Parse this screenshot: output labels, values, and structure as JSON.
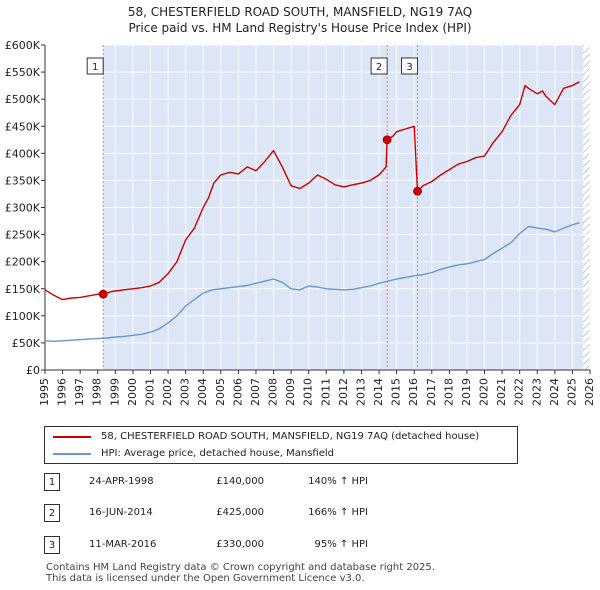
{
  "title_line1": "58, CHESTERFIELD ROAD SOUTH, MANSFIELD, NG19 7AQ",
  "title_line2": "Price paid vs. HM Land Registry's House Price Index (HPI)",
  "colors": {
    "price_line": "#cc0000",
    "hpi_line": "#6699cc",
    "shade": "#dde6f7",
    "grid": "#ffffff",
    "hatch": "#999999",
    "marker_line": "#ee7777"
  },
  "chart_data": {
    "type": "line",
    "title": "58, CHESTERFIELD ROAD SOUTH, MANSFIELD, NG19 7AQ — Price paid vs. HM Land Registry's House Price Index (HPI)",
    "xlabel": "",
    "ylabel": "",
    "xlim": [
      1995,
      2026
    ],
    "ylim": [
      0,
      600000
    ],
    "x_ticks": [
      "1995",
      "1996",
      "1997",
      "1998",
      "1999",
      "2000",
      "2001",
      "2002",
      "2003",
      "2004",
      "2005",
      "2006",
      "2007",
      "2008",
      "2009",
      "2010",
      "2011",
      "2012",
      "2013",
      "2014",
      "2015",
      "2016",
      "2017",
      "2018",
      "2019",
      "2020",
      "2021",
      "2022",
      "2023",
      "2024",
      "2025",
      "2026"
    ],
    "y_ticks": [
      {
        "value": 0,
        "label": "£0"
      },
      {
        "value": 50000,
        "label": "£50K"
      },
      {
        "value": 100000,
        "label": "£100K"
      },
      {
        "value": 150000,
        "label": "£150K"
      },
      {
        "value": 200000,
        "label": "£200K"
      },
      {
        "value": 250000,
        "label": "£250K"
      },
      {
        "value": 300000,
        "label": "£300K"
      },
      {
        "value": 350000,
        "label": "£350K"
      },
      {
        "value": 400000,
        "label": "£400K"
      },
      {
        "value": 450000,
        "label": "£450K"
      },
      {
        "value": 500000,
        "label": "£500K"
      },
      {
        "value": 550000,
        "label": "£550K"
      },
      {
        "value": 600000,
        "label": "£600K"
      }
    ],
    "shaded_period": [
      1998.31,
      2025.6
    ],
    "hatched_after": 2025.6,
    "grid": true,
    "series": [
      {
        "name": "58, CHESTERFIELD ROAD SOUTH, MANSFIELD, NG19 7AQ (detached house)",
        "x": [
          1995.0,
          1995.5,
          1996.0,
          1996.5,
          1997.0,
          1997.5,
          1998.0,
          1998.31,
          1998.8,
          1999.5,
          2000.0,
          2000.5,
          2001.0,
          2001.5,
          2002.0,
          2002.5,
          2003.0,
          2003.5,
          2004.0,
          2004.3,
          2004.6,
          2005.0,
          2005.5,
          2006.0,
          2006.5,
          2007.0,
          2007.5,
          2008.0,
          2008.5,
          2009.0,
          2009.5,
          2010.0,
          2010.5,
          2011.0,
          2011.5,
          2012.0,
          2012.5,
          2013.0,
          2013.5,
          2014.0,
          2014.4,
          2014.46,
          2014.8,
          2015.0,
          2015.5,
          2016.0,
          2016.19,
          2016.5,
          2017.0,
          2017.5,
          2018.0,
          2018.5,
          2019.0,
          2019.5,
          2020.0,
          2020.5,
          2021.0,
          2021.5,
          2022.0,
          2022.3,
          2022.5,
          2023.0,
          2023.3,
          2023.5,
          2024.0,
          2024.5,
          2025.0,
          2025.4
        ],
        "values": [
          148000,
          138000,
          130000,
          133000,
          134000,
          137000,
          140000,
          140000,
          145000,
          148000,
          150000,
          152000,
          155000,
          162000,
          178000,
          200000,
          240000,
          262000,
          300000,
          318000,
          345000,
          360000,
          365000,
          362000,
          375000,
          368000,
          385000,
          405000,
          375000,
          340000,
          335000,
          345000,
          360000,
          352000,
          342000,
          338000,
          342000,
          345000,
          350000,
          360000,
          375000,
          425000,
          432000,
          440000,
          445000,
          450000,
          330000,
          340000,
          348000,
          360000,
          370000,
          380000,
          385000,
          392000,
          395000,
          420000,
          440000,
          470000,
          490000,
          525000,
          520000,
          510000,
          515000,
          505000,
          490000,
          520000,
          525000,
          532000
        ]
      },
      {
        "name": "HPI: Average price, detached house, Mansfield",
        "x": [
          1995.0,
          1995.5,
          1996.0,
          1996.5,
          1997.0,
          1997.5,
          1998.0,
          1998.5,
          1999.0,
          1999.5,
          2000.0,
          2000.5,
          2001.0,
          2001.5,
          2002.0,
          2002.5,
          2003.0,
          2003.5,
          2004.0,
          2004.5,
          2005.0,
          2005.5,
          2006.0,
          2006.5,
          2007.0,
          2007.5,
          2008.0,
          2008.5,
          2009.0,
          2009.5,
          2010.0,
          2010.5,
          2011.0,
          2011.5,
          2012.0,
          2012.5,
          2013.0,
          2013.5,
          2014.0,
          2014.5,
          2015.0,
          2015.5,
          2016.0,
          2016.5,
          2017.0,
          2017.5,
          2018.0,
          2018.5,
          2019.0,
          2019.5,
          2020.0,
          2020.5,
          2021.0,
          2021.5,
          2022.0,
          2022.5,
          2023.0,
          2023.5,
          2024.0,
          2024.5,
          2025.0,
          2025.4
        ],
        "values": [
          54000,
          53000,
          54000,
          55000,
          56000,
          57000,
          58000,
          59000,
          61000,
          62000,
          64000,
          66000,
          70000,
          76000,
          87000,
          100000,
          118000,
          130000,
          142000,
          148000,
          150000,
          152000,
          154000,
          156000,
          160000,
          164000,
          168000,
          162000,
          150000,
          148000,
          155000,
          153000,
          150000,
          149000,
          148000,
          149000,
          152000,
          155000,
          160000,
          164000,
          168000,
          171000,
          174000,
          176000,
          180000,
          186000,
          190000,
          194000,
          196000,
          200000,
          204000,
          215000,
          225000,
          235000,
          252000,
          265000,
          262000,
          260000,
          255000,
          262000,
          268000,
          272000
        ]
      }
    ],
    "markers": [
      {
        "label": "1",
        "x": 1998.31,
        "value": 140000
      },
      {
        "label": "2",
        "x": 2014.46,
        "value": 425000
      },
      {
        "label": "3",
        "x": 2016.19,
        "value": 330000
      }
    ]
  },
  "legend": {
    "price_label": "58, CHESTERFIELD ROAD SOUTH, MANSFIELD, NG19 7AQ (detached house)",
    "hpi_label": "HPI: Average price, detached house, Mansfield"
  },
  "transactions": [
    {
      "num": "1",
      "date": "24-APR-1998",
      "price": "£140,000",
      "hpi": "140% ↑ HPI"
    },
    {
      "num": "2",
      "date": "16-JUN-2014",
      "price": "£425,000",
      "hpi": "166% ↑ HPI"
    },
    {
      "num": "3",
      "date": "11-MAR-2016",
      "price": "£330,000",
      "hpi": "95% ↑ HPI"
    }
  ],
  "footer_line1": "Contains HM Land Registry data © Crown copyright and database right 2025.",
  "footer_line2": "This data is licensed under the Open Government Licence v3.0."
}
